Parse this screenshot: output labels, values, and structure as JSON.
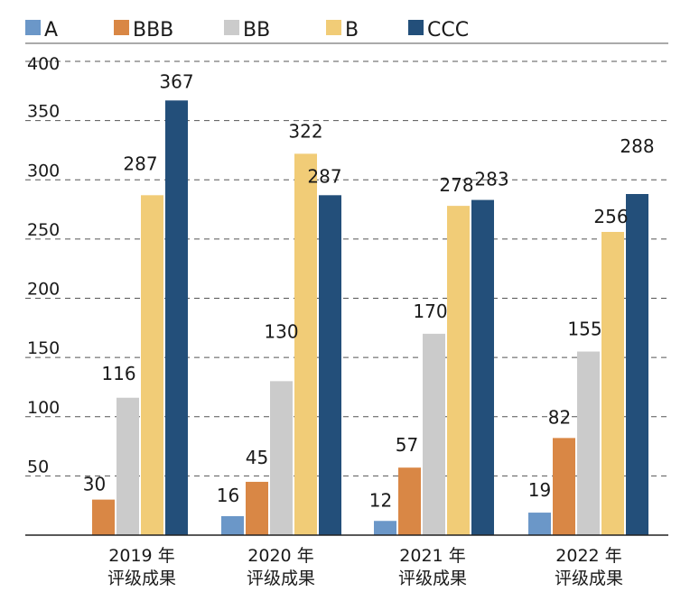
{
  "chart_data": {
    "type": "bar",
    "categories": [
      [
        "2019 年",
        "评级成果"
      ],
      [
        "2020 年",
        "评级成果"
      ],
      [
        "2021 年",
        "评级成果"
      ],
      [
        "2022 年",
        "评级成果"
      ]
    ],
    "series": [
      {
        "name": "A",
        "color": "#6b97c8",
        "values": [
          null,
          16,
          12,
          19
        ]
      },
      {
        "name": "BBB",
        "color": "#d98745",
        "values": [
          30,
          45,
          57,
          82
        ]
      },
      {
        "name": "BB",
        "color": "#cbcbcb",
        "values": [
          116,
          130,
          170,
          155
        ]
      },
      {
        "name": "B",
        "color": "#f1cc77",
        "values": [
          287,
          322,
          278,
          256
        ]
      },
      {
        "name": "CCC",
        "color": "#234f7a",
        "values": [
          367,
          287,
          283,
          288
        ]
      }
    ],
    "yticks": [
      50,
      100,
      150,
      200,
      250,
      300,
      350,
      400
    ],
    "ylim": [
      0,
      400
    ],
    "grid": true,
    "legend_position": "top-left"
  }
}
